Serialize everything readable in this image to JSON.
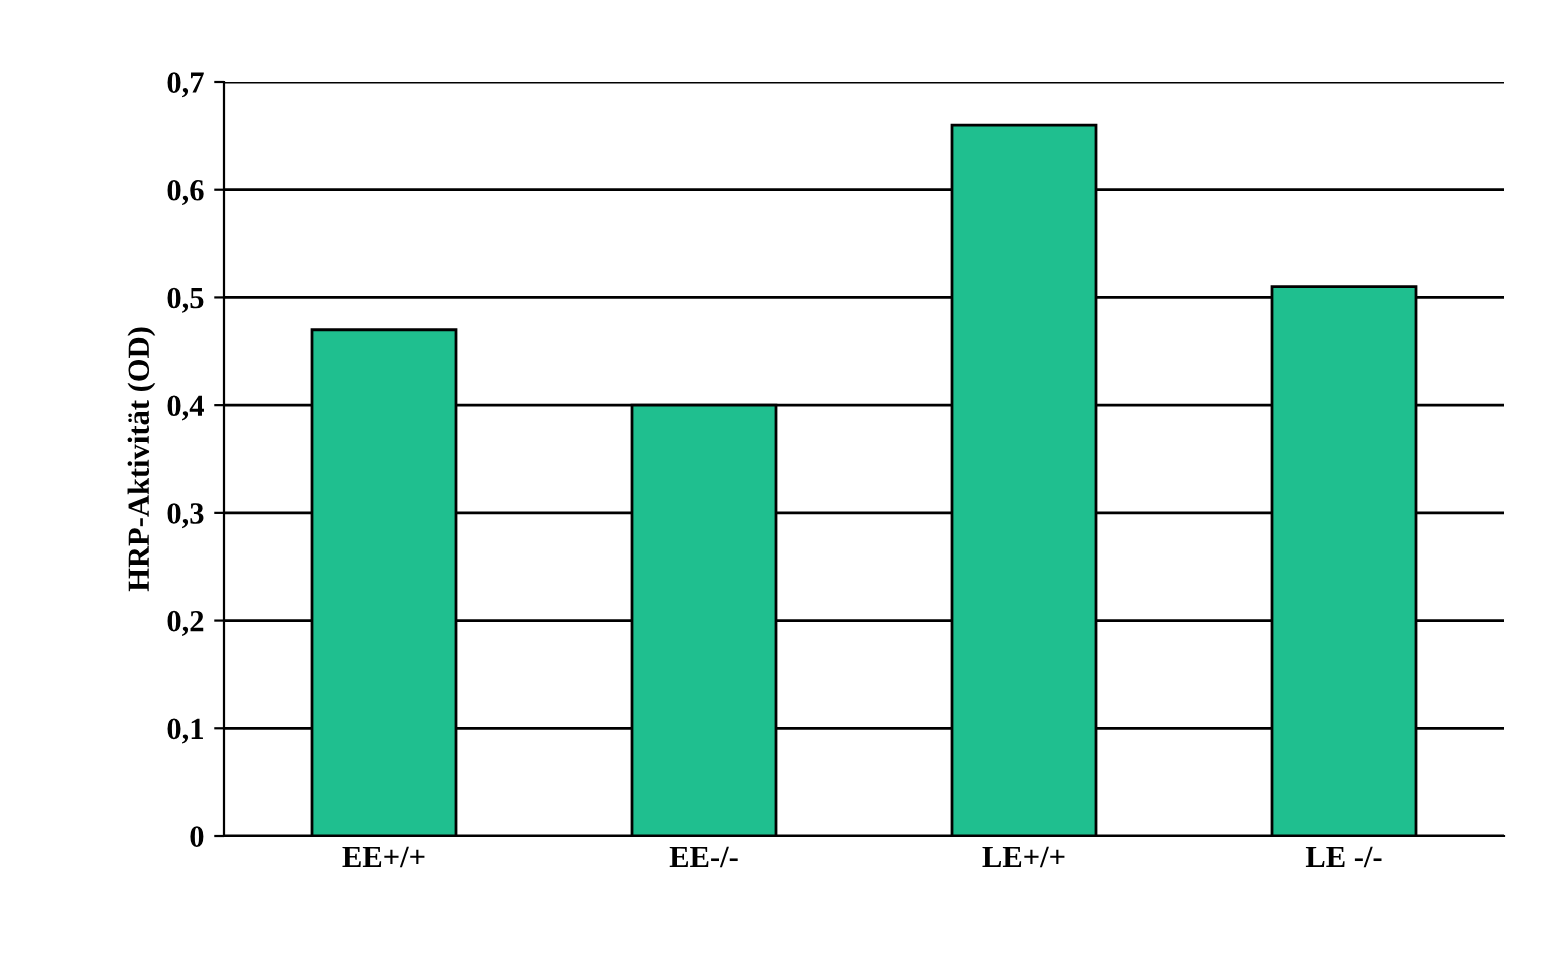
{
  "chart_data": {
    "type": "bar",
    "ylabel": "HRP-Aktivität (OD)",
    "categories": [
      "EE+/+",
      "EE-/-",
      "LE+/+",
      "LE -/-"
    ],
    "values": [
      0.47,
      0.4,
      0.66,
      0.51
    ],
    "color": "#1fbf8f",
    "ylim": [
      0,
      0.7
    ],
    "yticks": [
      0,
      {
        "value": 0.1,
        "label": "0,1"
      },
      {
        "value": 0.2,
        "label": "0,2"
      },
      {
        "value": 0.3,
        "label": "0,3"
      },
      {
        "value": 0.4,
        "label": "0,4"
      },
      {
        "value": 0.5,
        "label": "0,5"
      },
      {
        "value": 0.6,
        "label": "0,6"
      },
      {
        "value": 0.7,
        "label": "0,7"
      }
    ],
    "grid": "y"
  }
}
